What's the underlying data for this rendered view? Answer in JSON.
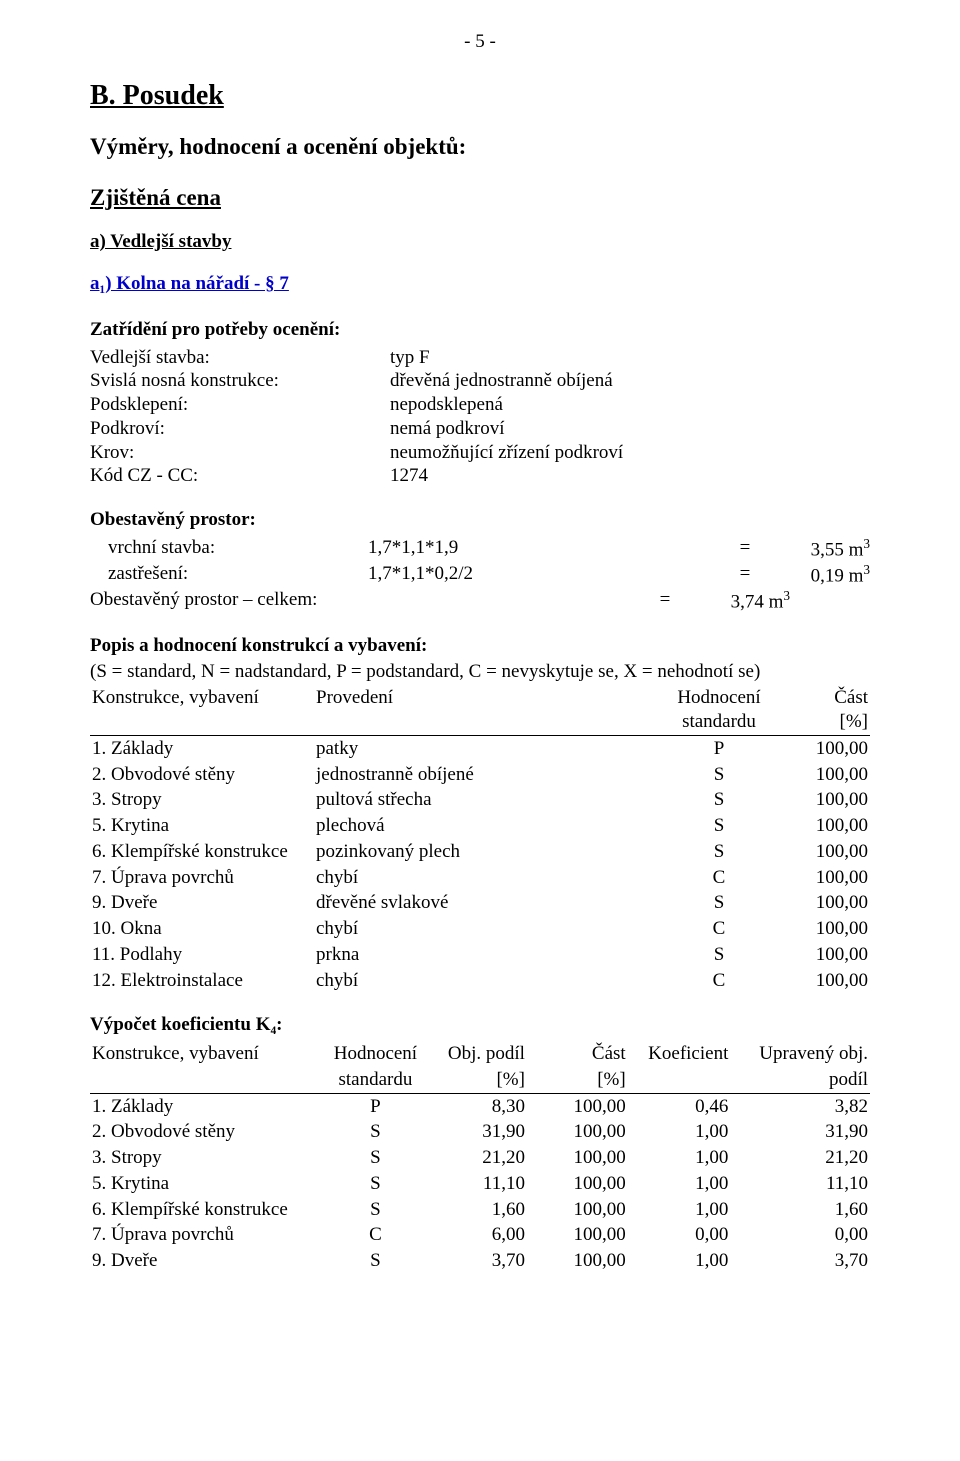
{
  "page_number": "- 5 -",
  "section_title": "B. Posudek",
  "subtitle": "Výměry, hodnocení a ocenění objektů:",
  "zjistena": "Zjištěná cena",
  "sub_a": "a) Vedlejší stavby",
  "link_a1": "a₁) Kolna na nářadí - § 7",
  "zatrideni_heading": "Zatřídění pro potřeby ocenění:",
  "kv": [
    {
      "k": "Vedlejší stavba:",
      "v": "typ F"
    },
    {
      "k": "Svislá nosná konstrukce:",
      "v": "dřevěná jednostranně obíjená"
    },
    {
      "k": "Podsklepení:",
      "v": "nepodsklepená"
    },
    {
      "k": "Podkroví:",
      "v": "nemá podkroví"
    },
    {
      "k": "Krov:",
      "v": "neumožňující zřízení podkroví"
    },
    {
      "k": "Kód CZ - CC:",
      "v": "1274"
    }
  ],
  "obest_heading": "Obestavěný prostor:",
  "calc": [
    {
      "label": "vrchní stavba:",
      "expr": "1,7*1,1*1,9",
      "res": "3,55 m",
      "sup": "3"
    },
    {
      "label": "zastřešení:",
      "expr": "1,7*1,1*0,2/2",
      "res": "0,19 m",
      "sup": "3"
    }
  ],
  "total": {
    "label": "Obestavěný prostor – celkem:",
    "res": "3,74 m",
    "sup": "3"
  },
  "popis_heading": "Popis a hodnocení konstrukcí a vybavení:",
  "legend": "(S = standard, N = nadstandard, P = podstandard, C = nevyskytuje se, X = nehodnotí se)",
  "tA_head": {
    "c1": "Konstrukce, vybavení",
    "c2": "Provedení",
    "c3a": "Hodnocení",
    "c3b": "standardu",
    "c4a": "Část",
    "c4b": "[%]"
  },
  "tA_rows": [
    {
      "n": " 1.",
      "name": "Základy",
      "prov": "patky",
      "h": "P",
      "p": "100,00"
    },
    {
      "n": " 2.",
      "name": "Obvodové stěny",
      "prov": "jednostranně obíjené",
      "h": "S",
      "p": "100,00"
    },
    {
      "n": " 3.",
      "name": "Stropy",
      "prov": "pultová střecha",
      "h": "S",
      "p": "100,00"
    },
    {
      "n": " 5.",
      "name": "Krytina",
      "prov": "plechová",
      "h": "S",
      "p": "100,00"
    },
    {
      "n": " 6.",
      "name": "Klempířské konstrukce",
      "prov": "pozinkovaný plech",
      "h": "S",
      "p": "100,00"
    },
    {
      "n": " 7.",
      "name": "Úprava povrchů",
      "prov": "chybí",
      "h": "C",
      "p": "100,00"
    },
    {
      "n": " 9.",
      "name": "Dveře",
      "prov": "dřevěné svlakové",
      "h": "S",
      "p": "100,00"
    },
    {
      "n": "10.",
      "name": "Okna",
      "prov": "chybí",
      "h": "C",
      "p": "100,00"
    },
    {
      "n": "11.",
      "name": "Podlahy",
      "prov": "prkna",
      "h": "S",
      "p": "100,00"
    },
    {
      "n": "12.",
      "name": "Elektroinstalace",
      "prov": "chybí",
      "h": "C",
      "p": "100,00"
    }
  ],
  "k4_heading": "Výpočet koeficientu K₄:",
  "tB_head": {
    "c1": "Konstrukce, vybavení",
    "c2a": "Hodnocení",
    "c2b": "standardu",
    "c3a": "Obj. podíl",
    "c3b": "[%]",
    "c4a": "Část",
    "c4b": "[%]",
    "c5": "Koeficient",
    "c6a": "Upravený obj.",
    "c6b": "podíl"
  },
  "tB_rows": [
    {
      "n": " 1.",
      "name": "Základy",
      "h": "P",
      "op": "8,30",
      "c": "100,00",
      "k": "0,46",
      "u": "3,82"
    },
    {
      "n": " 2.",
      "name": "Obvodové stěny",
      "h": "S",
      "op": "31,90",
      "c": "100,00",
      "k": "1,00",
      "u": "31,90"
    },
    {
      "n": " 3.",
      "name": "Stropy",
      "h": "S",
      "op": "21,20",
      "c": "100,00",
      "k": "1,00",
      "u": "21,20"
    },
    {
      "n": " 5.",
      "name": "Krytina",
      "h": "S",
      "op": "11,10",
      "c": "100,00",
      "k": "1,00",
      "u": "11,10"
    },
    {
      "n": " 6.",
      "name": "Klempířské konstrukce",
      "h": "S",
      "op": "1,60",
      "c": "100,00",
      "k": "1,00",
      "u": "1,60"
    },
    {
      "n": " 7.",
      "name": "Úprava povrchů",
      "h": "C",
      "op": "6,00",
      "c": "100,00",
      "k": "0,00",
      "u": "0,00"
    },
    {
      "n": " 9.",
      "name": "Dveře",
      "h": "S",
      "op": "3,70",
      "c": "100,00",
      "k": "1,00",
      "u": "3,70"
    }
  ]
}
